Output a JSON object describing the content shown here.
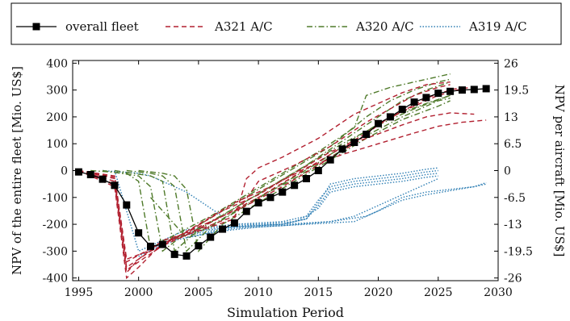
{
  "chart_data": {
    "type": "line",
    "xlabel": "Simulation Period",
    "ylabel_left": "NPV of the entire fleet [Mio. US$]",
    "ylabel_right": "NPV per aircraft [Mio. US$]",
    "xlim": [
      1994.5,
      2030
    ],
    "ylim": [
      -410,
      410
    ],
    "xticks": [
      1995,
      2000,
      2005,
      2010,
      2015,
      2020,
      2025,
      2030
    ],
    "yticks_left": [
      -400,
      -300,
      -200,
      -100,
      0,
      100,
      200,
      300,
      400
    ],
    "yticks_right": [
      {
        "label": "26",
        "value": 400
      },
      {
        "label": "19.5",
        "value": 300
      },
      {
        "label": "13",
        "value": 200
      },
      {
        "label": "6.5",
        "value": 100
      },
      {
        "label": "0",
        "value": 0
      },
      {
        "label": "-6.5",
        "value": -100
      },
      {
        "label": "-13",
        "value": -200
      },
      {
        "label": "-19.5",
        "value": -300
      },
      {
        "label": "-26",
        "value": -400
      }
    ],
    "legend_position": "top",
    "colors": {
      "fleet": "#000000",
      "A321": "#b22030",
      "A320": "#4f7a2a",
      "A319": "#2f7fb4"
    },
    "legend": [
      {
        "name": "overall fleet",
        "style": "fleet"
      },
      {
        "name": "A321 A/C",
        "style": "A321"
      },
      {
        "name": "A320 A/C",
        "style": "A320"
      },
      {
        "name": "A319 A/C",
        "style": "A319"
      }
    ],
    "series": [
      {
        "group": "fleet",
        "name": "overall fleet",
        "x": [
          1995,
          1996,
          1997,
          1998,
          1999,
          2000,
          2001,
          2002,
          2003,
          2004,
          2005,
          2006,
          2007,
          2008,
          2009,
          2010,
          2011,
          2012,
          2013,
          2014,
          2015,
          2016,
          2017,
          2018,
          2019,
          2020,
          2021,
          2022,
          2023,
          2024,
          2025,
          2026,
          2027,
          2028,
          2029
        ],
        "y": [
          -5,
          -15,
          -32,
          -55,
          -128,
          -232,
          -282,
          -275,
          -312,
          -318,
          -280,
          -248,
          -218,
          -195,
          -152,
          -120,
          -100,
          -80,
          -55,
          -30,
          0,
          40,
          80,
          105,
          135,
          175,
          200,
          228,
          255,
          272,
          288,
          295,
          300,
          302,
          305
        ]
      },
      {
        "group": "A321",
        "x": [
          1995,
          1998,
          1999,
          2000,
          2002,
          2004,
          2006,
          2008,
          2009,
          2010,
          2012,
          2015,
          2018,
          2020,
          2022,
          2024,
          2026
        ],
        "y": [
          0,
          -60,
          -400,
          -360,
          -270,
          -240,
          -210,
          -180,
          -30,
          10,
          50,
          120,
          210,
          250,
          290,
          320,
          330
        ]
      },
      {
        "group": "A321",
        "x": [
          1995,
          1998,
          1999,
          2000,
          2002,
          2005,
          2008,
          2010,
          2013,
          2016,
          2019,
          2021,
          2023,
          2025,
          2026
        ],
        "y": [
          0,
          -50,
          -380,
          -330,
          -260,
          -220,
          -170,
          -40,
          20,
          90,
          180,
          230,
          280,
          310,
          320
        ]
      },
      {
        "group": "A321",
        "x": [
          1995,
          1998,
          1999,
          2001,
          2003,
          2006,
          2009,
          2012,
          2015,
          2018,
          2020,
          2022,
          2024,
          2026,
          2027
        ],
        "y": [
          0,
          -40,
          -370,
          -310,
          -250,
          -190,
          -130,
          -60,
          20,
          100,
          170,
          220,
          270,
          300,
          310
        ]
      },
      {
        "group": "A321",
        "x": [
          1995,
          1998,
          1999,
          2001,
          2004,
          2007,
          2010,
          2013,
          2016,
          2019,
          2021,
          2023,
          2025,
          2027,
          2028
        ],
        "y": [
          0,
          -30,
          -360,
          -300,
          -240,
          -170,
          -100,
          -20,
          60,
          140,
          200,
          240,
          280,
          305,
          312
        ]
      },
      {
        "group": "A321",
        "x": [
          1995,
          1998,
          1999,
          2001,
          2004,
          2007,
          2010,
          2013,
          2016,
          2019,
          2022,
          2024,
          2026,
          2028
        ],
        "y": [
          0,
          -25,
          -340,
          -290,
          -230,
          -150,
          -90,
          -10,
          70,
          120,
          170,
          200,
          215,
          210
        ]
      },
      {
        "group": "A321",
        "x": [
          1995,
          1998,
          1999,
          2002,
          2005,
          2008,
          2011,
          2014,
          2017,
          2020,
          2023,
          2025,
          2027,
          2029
        ],
        "y": [
          0,
          -20,
          -330,
          -280,
          -200,
          -120,
          -60,
          10,
          60,
          100,
          140,
          165,
          180,
          188
        ]
      },
      {
        "group": "A320",
        "x": [
          1996,
          1999,
          2000,
          2001,
          2003,
          2006,
          2009,
          2012,
          2015,
          2018,
          2019,
          2021,
          2023,
          2025,
          2026
        ],
        "y": [
          0,
          -10,
          -40,
          -290,
          -240,
          -170,
          -90,
          -10,
          70,
          160,
          280,
          310,
          330,
          350,
          360
        ]
      },
      {
        "group": "A320",
        "x": [
          1997,
          2000,
          2001,
          2002,
          2004,
          2007,
          2010,
          2013,
          2016,
          2019,
          2021,
          2023,
          2025,
          2026
        ],
        "y": [
          0,
          -20,
          -60,
          -300,
          -230,
          -150,
          -70,
          10,
          90,
          200,
          260,
          300,
          330,
          340
        ]
      },
      {
        "group": "A320",
        "x": [
          1998,
          2001,
          2002,
          2003,
          2005,
          2008,
          2011,
          2014,
          2017,
          2020,
          2022,
          2024,
          2026
        ],
        "y": [
          0,
          -20,
          -40,
          -300,
          -220,
          -140,
          -60,
          20,
          110,
          200,
          260,
          300,
          330
        ]
      },
      {
        "group": "A320",
        "x": [
          1999,
          2001,
          2002,
          2003,
          2004,
          2006,
          2009,
          2012,
          2015,
          2018,
          2021,
          2024,
          2026
        ],
        "y": [
          0,
          -10,
          -20,
          -60,
          -300,
          -210,
          -130,
          -50,
          30,
          120,
          200,
          250,
          280
        ]
      },
      {
        "group": "A320",
        "x": [
          2000,
          2002,
          2003,
          2004,
          2005,
          2007,
          2010,
          2013,
          2016,
          2019,
          2022,
          2025,
          2026
        ],
        "y": [
          0,
          -10,
          -20,
          -70,
          -300,
          -200,
          -120,
          -40,
          40,
          120,
          190,
          240,
          260
        ]
      },
      {
        "group": "A320",
        "x": [
          2001,
          2003,
          2004,
          2005,
          2007,
          2010,
          2013,
          2016,
          2019,
          2022,
          2025,
          2026
        ],
        "y": [
          -100,
          -200,
          -250,
          -230,
          -180,
          -100,
          -30,
          50,
          130,
          200,
          260,
          270
        ]
      },
      {
        "group": "A320",
        "x": [
          2002,
          2004,
          2006,
          2008,
          2011,
          2014,
          2017,
          2020,
          2023,
          2026
        ],
        "y": [
          -260,
          -240,
          -190,
          -140,
          -60,
          20,
          100,
          170,
          230,
          280
        ]
      },
      {
        "group": "A319",
        "x": [
          1997,
          2000,
          2001,
          2002,
          2003,
          2004,
          2008,
          2012,
          2014,
          2015,
          2016,
          2018,
          2020,
          2022,
          2024,
          2025
        ],
        "y": [
          0,
          -10,
          -20,
          -40,
          -60,
          -80,
          -200,
          -200,
          -180,
          -120,
          -50,
          -30,
          -20,
          -10,
          5,
          10
        ]
      },
      {
        "group": "A319",
        "x": [
          1998,
          2000,
          2002,
          2004,
          2008,
          2012,
          2014,
          2015,
          2016,
          2018,
          2020,
          2022,
          2024,
          2025
        ],
        "y": [
          0,
          -300,
          -260,
          -220,
          -200,
          -190,
          -170,
          -110,
          -60,
          -40,
          -30,
          -20,
          -5,
          0
        ]
      },
      {
        "group": "A319",
        "x": [
          2000,
          2002,
          2004,
          2008,
          2012,
          2014,
          2015,
          2016,
          2018,
          2020,
          2022,
          2024,
          2025
        ],
        "y": [
          -320,
          -270,
          -230,
          -210,
          -200,
          -180,
          -130,
          -70,
          -50,
          -40,
          -30,
          -15,
          -10
        ]
      },
      {
        "group": "A319",
        "x": [
          2001,
          2003,
          2006,
          2010,
          2013,
          2014,
          2015,
          2016,
          2018,
          2020,
          2022,
          2024,
          2025
        ],
        "y": [
          -300,
          -250,
          -215,
          -200,
          -190,
          -170,
          -140,
          -80,
          -60,
          -50,
          -40,
          -25,
          -20
        ]
      },
      {
        "group": "A319",
        "x": [
          2002,
          2004,
          2008,
          2012,
          2016,
          2018,
          2020,
          2022,
          2024,
          2025
        ],
        "y": [
          -280,
          -240,
          -210,
          -200,
          -190,
          -170,
          -130,
          -90,
          -50,
          -30
        ]
      },
      {
        "group": "A319",
        "x": [
          2003,
          2006,
          2010,
          2014,
          2018,
          2020,
          2022,
          2024,
          2026,
          2028,
          2029
        ],
        "y": [
          -260,
          -230,
          -210,
          -200,
          -190,
          -150,
          -110,
          -90,
          -75,
          -60,
          -45
        ]
      },
      {
        "group": "A319",
        "x": [
          2004,
          2008,
          2012,
          2016,
          2019,
          2020,
          2022,
          2024,
          2026,
          2028,
          2029
        ],
        "y": [
          -250,
          -215,
          -205,
          -190,
          -170,
          -150,
          -100,
          -80,
          -70,
          -60,
          -50
        ]
      }
    ]
  }
}
